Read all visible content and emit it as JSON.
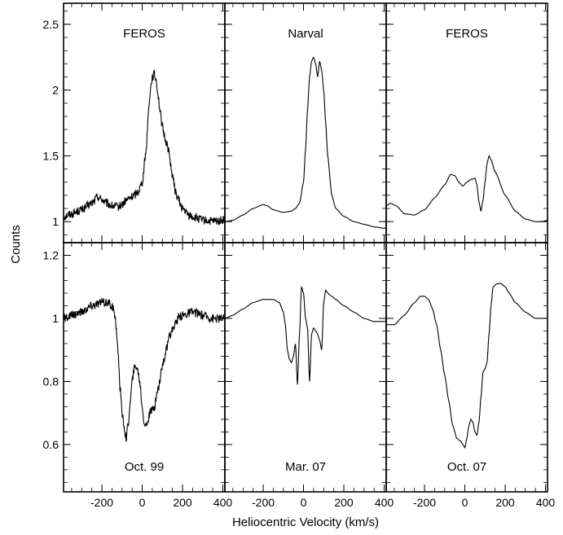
{
  "figure": {
    "xlabel": "Heliocentric Velocity (km/s)",
    "ylabel": "Counts"
  },
  "chart_data": [
    {
      "type": "line",
      "row": 0,
      "col": 0,
      "label": "FEROS",
      "label_pos": "top",
      "xlim": [
        -390,
        410
      ],
      "ylim": [
        0.84,
        2.66
      ],
      "yticks": [
        1,
        1.5,
        2,
        2.5
      ],
      "ytick_labels": [
        "1",
        "1.5",
        "2",
        "2.5"
      ],
      "noisy": true,
      "x": [
        -390,
        -350,
        -300,
        -250,
        -220,
        -200,
        -180,
        -150,
        -120,
        -100,
        -80,
        -60,
        -40,
        -20,
        0,
        20,
        30,
        40,
        50,
        60,
        70,
        80,
        90,
        100,
        110,
        120,
        130,
        140,
        150,
        170,
        200,
        230,
        260,
        300,
        350,
        400,
        410
      ],
      "y": [
        1.04,
        1.06,
        1.09,
        1.14,
        1.19,
        1.17,
        1.14,
        1.12,
        1.11,
        1.13,
        1.16,
        1.18,
        1.2,
        1.23,
        1.3,
        1.55,
        1.82,
        2.0,
        2.1,
        2.12,
        2.07,
        1.95,
        1.82,
        1.72,
        1.65,
        1.6,
        1.55,
        1.45,
        1.34,
        1.2,
        1.1,
        1.05,
        1.03,
        1.01,
        1.0,
        1.01,
        1.02
      ]
    },
    {
      "type": "line",
      "row": 0,
      "col": 1,
      "label": "Narval",
      "label_pos": "top",
      "xlim": [
        -390,
        410
      ],
      "ylim": [
        0.84,
        2.66
      ],
      "yticks": [
        1,
        1.5,
        2,
        2.5
      ],
      "ytick_labels": [],
      "noisy": false,
      "x": [
        -390,
        -350,
        -300,
        -250,
        -200,
        -180,
        -150,
        -100,
        -60,
        -40,
        -20,
        0,
        10,
        20,
        30,
        40,
        50,
        60,
        70,
        80,
        90,
        100,
        110,
        120,
        140,
        160,
        200,
        250,
        300,
        350,
        400,
        410
      ],
      "y": [
        1.0,
        1.01,
        1.05,
        1.1,
        1.13,
        1.12,
        1.09,
        1.07,
        1.08,
        1.1,
        1.14,
        1.3,
        1.55,
        1.85,
        2.1,
        2.22,
        2.25,
        2.2,
        2.1,
        2.22,
        2.15,
        2.0,
        1.75,
        1.5,
        1.2,
        1.1,
        1.04,
        1.0,
        0.98,
        0.96,
        0.95,
        0.95
      ]
    },
    {
      "type": "line",
      "row": 0,
      "col": 2,
      "label": "FEROS",
      "label_pos": "top",
      "xlim": [
        -390,
        410
      ],
      "ylim": [
        0.84,
        2.66
      ],
      "yticks": [
        1,
        1.5,
        2,
        2.5
      ],
      "ytick_labels": [],
      "noisy": false,
      "x": [
        -390,
        -370,
        -340,
        -300,
        -250,
        -200,
        -150,
        -100,
        -70,
        -50,
        -30,
        -10,
        10,
        30,
        50,
        60,
        70,
        80,
        90,
        100,
        110,
        120,
        130,
        150,
        200,
        250,
        300,
        350,
        380,
        410
      ],
      "y": [
        1.12,
        1.14,
        1.12,
        1.06,
        1.05,
        1.09,
        1.18,
        1.28,
        1.36,
        1.35,
        1.3,
        1.27,
        1.3,
        1.32,
        1.33,
        1.28,
        1.15,
        1.08,
        1.16,
        1.3,
        1.44,
        1.5,
        1.47,
        1.38,
        1.2,
        1.08,
        1.02,
        1.0,
        1.0,
        1.01
      ]
    },
    {
      "type": "line",
      "row": 1,
      "col": 0,
      "label": "Oct. 99",
      "label_pos": "bottom",
      "xlim": [
        -390,
        410
      ],
      "ylim": [
        0.45,
        1.24
      ],
      "yticks": [
        0.6,
        0.8,
        1,
        1.2
      ],
      "ytick_labels": [
        "0.6",
        "0.8",
        "1",
        "1.2"
      ],
      "noisy": true,
      "x": [
        -390,
        -300,
        -250,
        -200,
        -170,
        -150,
        -140,
        -130,
        -120,
        -110,
        -100,
        -90,
        -80,
        -70,
        -60,
        -50,
        -40,
        -30,
        -20,
        -10,
        0,
        10,
        20,
        40,
        60,
        80,
        100,
        120,
        140,
        160,
        180,
        200,
        250,
        300,
        350,
        410
      ],
      "y": [
        1.0,
        1.02,
        1.04,
        1.05,
        1.05,
        1.04,
        1.02,
        0.98,
        0.9,
        0.78,
        0.7,
        0.66,
        0.62,
        0.66,
        0.73,
        0.8,
        0.84,
        0.85,
        0.83,
        0.79,
        0.72,
        0.67,
        0.66,
        0.7,
        0.72,
        0.78,
        0.85,
        0.9,
        0.95,
        0.98,
        1.0,
        1.01,
        1.02,
        1.01,
        1.0,
        1.0
      ]
    },
    {
      "type": "line",
      "row": 1,
      "col": 1,
      "label": "Mar. 07",
      "label_pos": "bottom",
      "xlim": [
        -390,
        410
      ],
      "ylim": [
        0.45,
        1.24
      ],
      "yticks": [
        0.6,
        0.8,
        1,
        1.2
      ],
      "ytick_labels": [],
      "noisy": false,
      "x": [
        -390,
        -350,
        -300,
        -250,
        -200,
        -150,
        -120,
        -100,
        -90,
        -80,
        -70,
        -60,
        -50,
        -40,
        -30,
        -20,
        -10,
        0,
        10,
        20,
        30,
        40,
        50,
        60,
        70,
        80,
        90,
        100,
        110,
        120,
        140,
        160,
        200,
        250,
        300,
        350,
        410
      ],
      "y": [
        1.0,
        1.01,
        1.03,
        1.05,
        1.06,
        1.06,
        1.05,
        1.02,
        0.98,
        0.9,
        0.87,
        0.86,
        0.88,
        0.92,
        0.79,
        0.95,
        1.1,
        1.08,
        1.0,
        0.97,
        0.8,
        0.95,
        0.97,
        0.96,
        0.95,
        0.93,
        0.9,
        1.05,
        1.09,
        1.08,
        1.07,
        1.06,
        1.04,
        1.02,
        1.0,
        0.99,
        0.99
      ]
    },
    {
      "type": "line",
      "row": 1,
      "col": 2,
      "label": "Oct. 07",
      "label_pos": "bottom",
      "xlim": [
        -390,
        410
      ],
      "ylim": [
        0.45,
        1.24
      ],
      "yticks": [
        0.6,
        0.8,
        1,
        1.2
      ],
      "ytick_labels": [],
      "noisy": false,
      "x": [
        -390,
        -350,
        -300,
        -250,
        -220,
        -200,
        -180,
        -160,
        -140,
        -120,
        -100,
        -80,
        -60,
        -40,
        -20,
        -10,
        0,
        10,
        20,
        30,
        40,
        50,
        60,
        70,
        80,
        90,
        100,
        110,
        120,
        130,
        140,
        160,
        180,
        200,
        220,
        250,
        300,
        350,
        410
      ],
      "y": [
        0.98,
        0.98,
        1.01,
        1.05,
        1.07,
        1.07,
        1.06,
        1.03,
        0.98,
        0.9,
        0.82,
        0.74,
        0.66,
        0.62,
        0.61,
        0.6,
        0.59,
        0.62,
        0.66,
        0.68,
        0.67,
        0.64,
        0.63,
        0.67,
        0.75,
        0.83,
        0.84,
        0.86,
        0.95,
        1.04,
        1.1,
        1.11,
        1.11,
        1.1,
        1.08,
        1.05,
        1.02,
        1.0,
        1.0
      ]
    }
  ],
  "xticks": {
    "values": [
      -200,
      0,
      200,
      400
    ],
    "labels": [
      "-200",
      "0",
      "200",
      "400"
    ]
  }
}
